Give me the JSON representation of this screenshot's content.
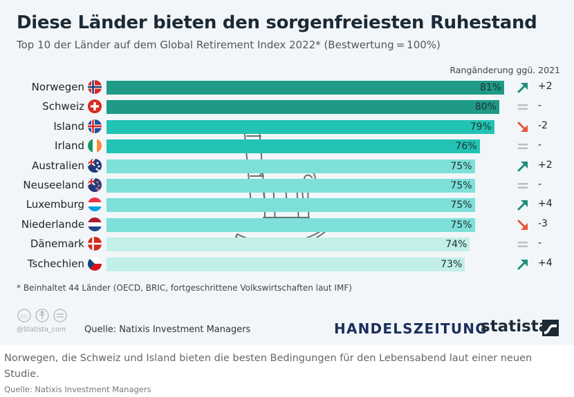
{
  "title": "Diese Länder bieten den sorgenfreiesten Ruhestand",
  "subtitle": "Top 10 der Länder auf dem Global Retirement Index 2022* (Bestwertung = 100%)",
  "rank_header": "Rangänderung ggü. 2021",
  "footnote": "* Beinhaltet 44 Länder (OECD, BRIC, fortgeschrittene Volkswirtschaften laut IMF)",
  "statista_handle": "@Statista_com",
  "source_inner": "Quelle: Natixis Investment Managers",
  "brand_handelszeitung": "HANDELSZEITUNG",
  "brand_statista": "statista",
  "caption": "Norwegen, die Schweiz und Island bieten die besten Bedingungen für den Lebensabend laut einer neuen Studie.",
  "source_outer": "Quelle: Natixis Investment Managers",
  "colors": {
    "tier1": "#1e9a86",
    "tier2": "#22c3b5",
    "tier3": "#7ee0d8",
    "tier4": "#c2efe9",
    "arrow_up": "#1e8e7a",
    "arrow_down": "#e8553a",
    "equal": "#b9bec3"
  },
  "chart_data": {
    "type": "bar",
    "orientation": "horizontal",
    "title": "Diese Länder bieten den sorgenfreiesten Ruhestand",
    "subtitle": "Top 10 der Länder auf dem Global Retirement Index 2022* (Bestwertung = 100%)",
    "categories": [
      "Norwegen",
      "Schweiz",
      "Island",
      "Irland",
      "Australien",
      "Neuseeland",
      "Luxemburg",
      "Niederlande",
      "Dänemark",
      "Tschechien"
    ],
    "values": [
      81,
      80,
      79,
      76,
      75,
      75,
      75,
      75,
      74,
      73
    ],
    "value_labels": [
      "81%",
      "80%",
      "79%",
      "76%",
      "75%",
      "75%",
      "75%",
      "75%",
      "74%",
      "73%"
    ],
    "unit": "%",
    "xlim": [
      0,
      100
    ],
    "flags": [
      "norway-flag",
      "switzerland-flag",
      "iceland-flag",
      "ireland-flag",
      "australia-flag",
      "new-zealand-flag",
      "luxembourg-flag",
      "netherlands-flag",
      "denmark-flag",
      "czech-flag"
    ],
    "rank_change": {
      "label": "Rangänderung ggü. 2021",
      "directions": [
        "up",
        "equal",
        "down",
        "equal",
        "up",
        "equal",
        "up",
        "down",
        "equal",
        "up"
      ],
      "values": [
        "+2",
        "-",
        "-2",
        "-",
        "+2",
        "-",
        "+4",
        "-3",
        "-",
        "+4"
      ]
    },
    "grid": false,
    "legend": "none"
  }
}
